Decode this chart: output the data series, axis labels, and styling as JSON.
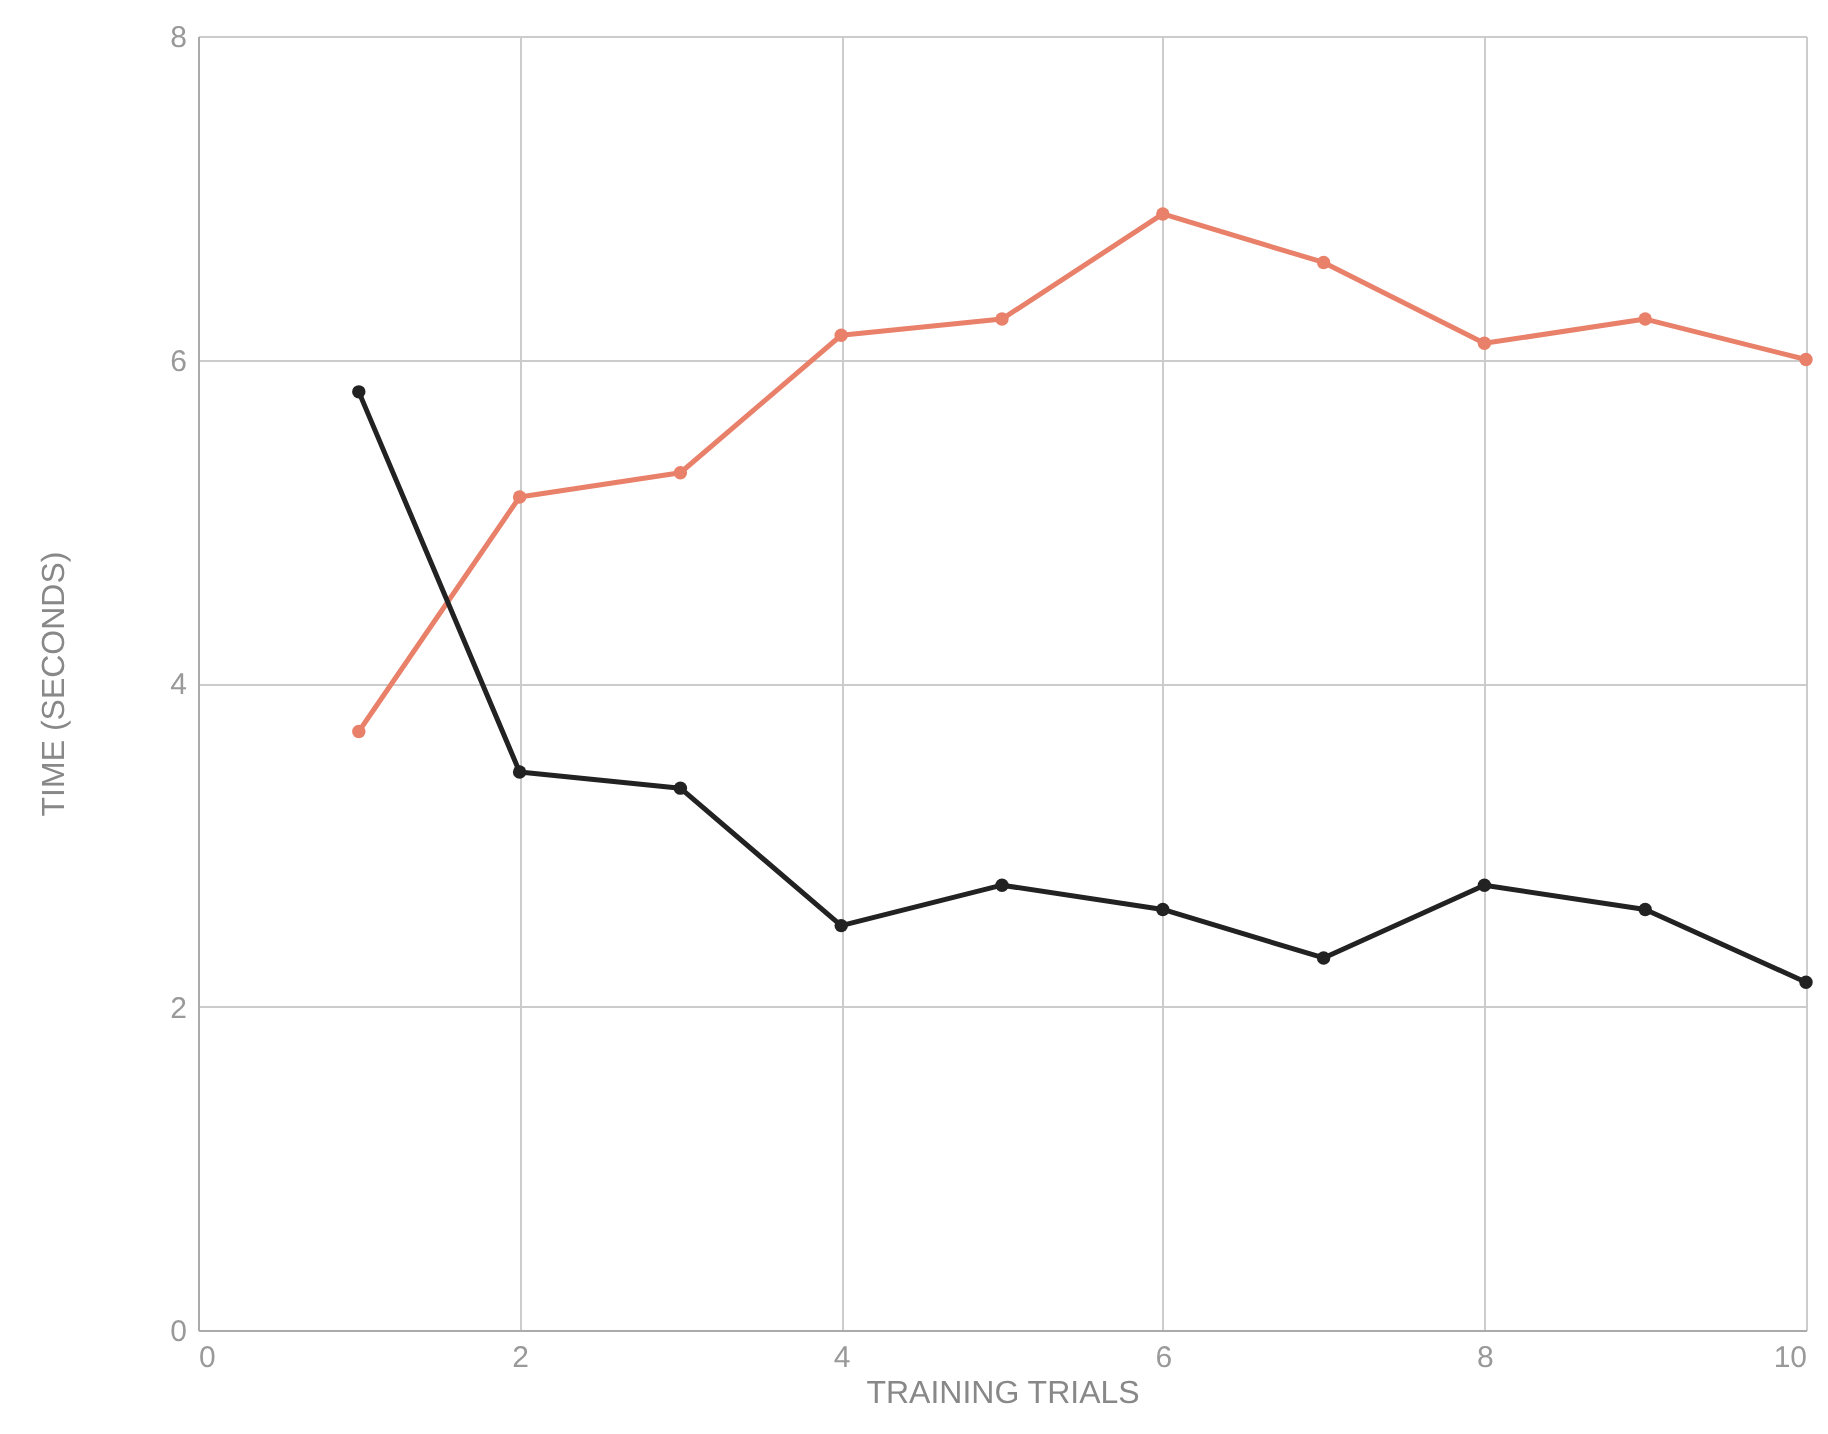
{
  "chart_data": {
    "type": "line",
    "xlabel": "TRAINING TRIALS",
    "ylabel": "TIME (SECONDS)",
    "x": [
      1,
      2,
      3,
      4,
      5,
      6,
      7,
      8,
      9,
      10
    ],
    "series": [
      {
        "color": "#e8806a",
        "values": [
          3.7,
          5.15,
          5.3,
          6.15,
          6.25,
          6.9,
          6.6,
          6.1,
          6.25,
          6.0
        ]
      },
      {
        "color": "#222222",
        "values": [
          5.8,
          3.45,
          3.35,
          2.5,
          2.75,
          2.6,
          2.3,
          2.75,
          2.6,
          2.15
        ]
      }
    ],
    "xlim": [
      0,
      10
    ],
    "xticks": [
      0,
      2,
      4,
      6,
      8,
      10
    ],
    "ylim": [
      0,
      8
    ],
    "yticks": [
      0,
      2,
      4,
      6,
      8
    ],
    "grid": true,
    "marker": "circle",
    "line_style": "solid"
  }
}
